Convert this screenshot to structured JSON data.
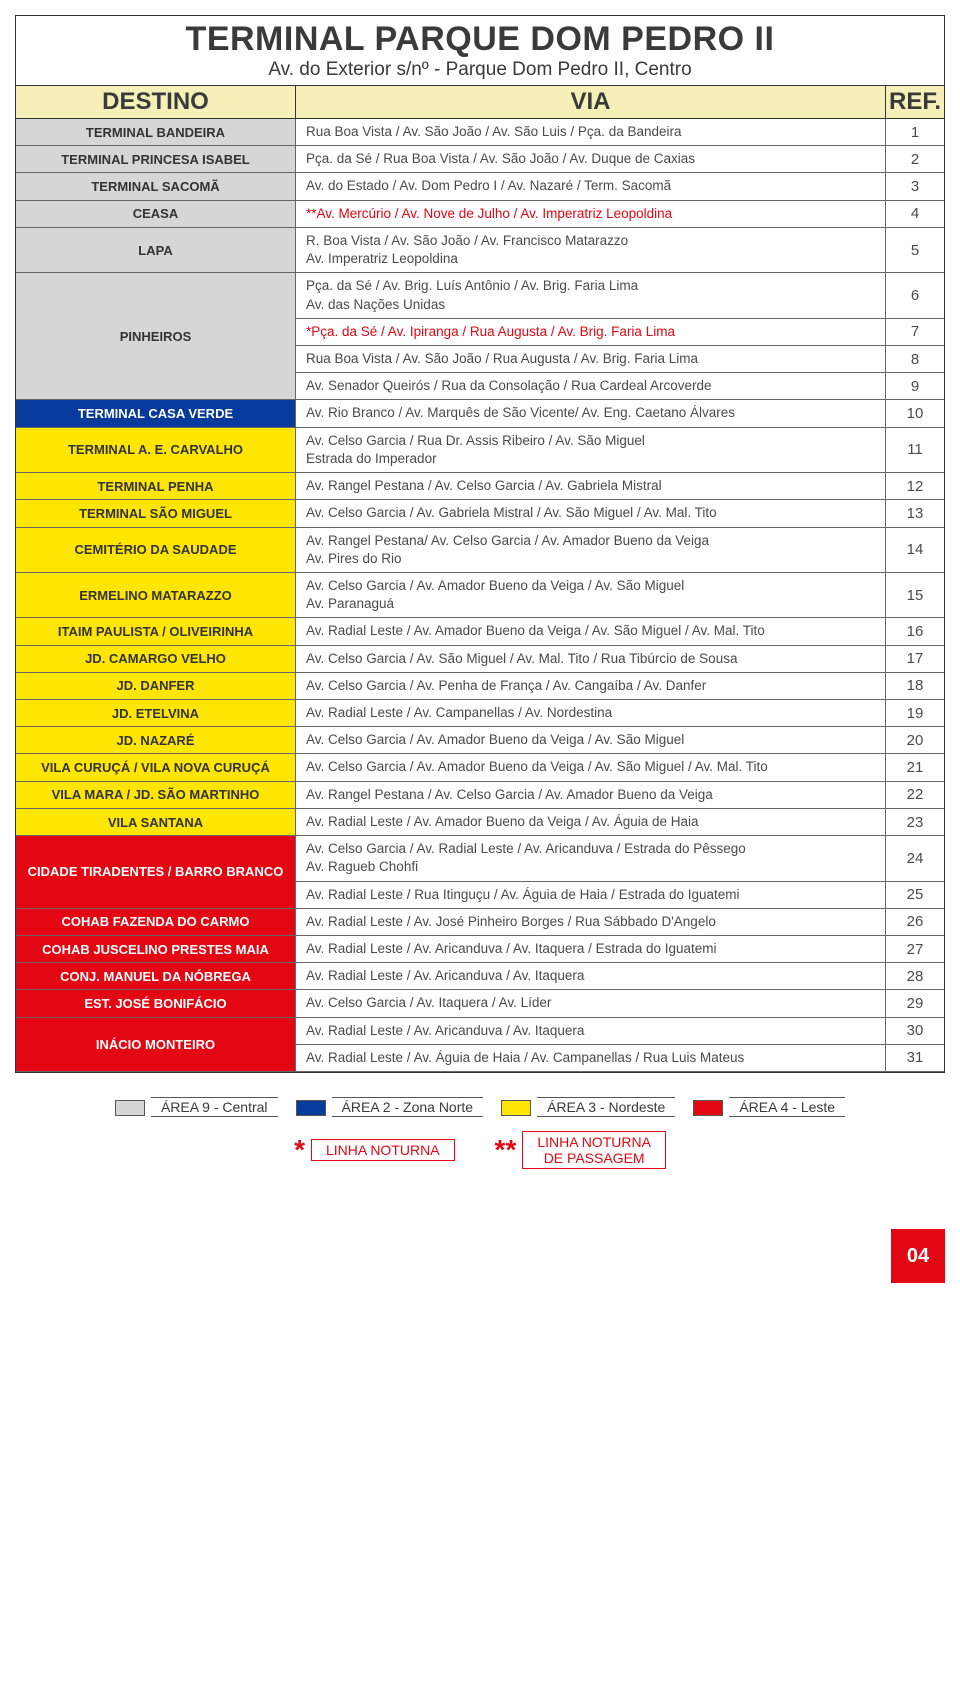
{
  "title": "TERMINAL PARQUE DOM PEDRO II",
  "subtitle": "Av. do Exterior s/nº - Parque Dom Pedro II, Centro",
  "headers": {
    "dest": "DESTINO",
    "via": "VIA",
    "ref": "REF."
  },
  "colors": {
    "gray": "#d6d6d6",
    "blue": "#063a9c",
    "yellow": "#ffe600",
    "red": "#e30613",
    "white": "#ffffff",
    "header_bg": "#f5f0b8",
    "text": "#4a4a4a"
  },
  "rows": [
    {
      "dest": "TERMINAL BANDEIRA",
      "color": "gray",
      "vias": [
        {
          "text": "Rua Boa Vista / Av. São João / Av. São Luis / Pça. da Bandeira",
          "ref": "1"
        }
      ]
    },
    {
      "dest": "TERMINAL PRINCESA ISABEL",
      "color": "gray",
      "vias": [
        {
          "text": "Pça. da Sé / Rua Boa Vista / Av. São João / Av. Duque de Caxias",
          "ref": "2"
        }
      ]
    },
    {
      "dest": "TERMINAL SACOMÃ",
      "color": "gray",
      "vias": [
        {
          "text": "Av. do Estado / Av. Dom Pedro I / Av. Nazaré / Term. Sacomã",
          "ref": "3"
        }
      ]
    },
    {
      "dest": "CEASA",
      "color": "gray",
      "vias": [
        {
          "text": "**Av. Mercúrio / Av. Nove de Julho / Av. Imperatriz Leopoldina",
          "ref": "4",
          "red": true
        }
      ]
    },
    {
      "dest": "LAPA",
      "color": "gray",
      "vias": [
        {
          "text": "R. Boa Vista / Av. São João / Av. Francisco Matarazzo\nAv. Imperatriz Leopoldina",
          "ref": "5"
        }
      ]
    },
    {
      "dest": "PINHEIROS",
      "color": "gray",
      "vias": [
        {
          "text": "Pça. da Sé / Av. Brig. Luís Antônio / Av. Brig. Faria Lima\nAv. das Nações Unidas",
          "ref": "6"
        },
        {
          "text": "*Pça. da Sé / Av. Ipiranga / Rua Augusta  / Av. Brig. Faria Lima",
          "ref": "7",
          "red": true
        },
        {
          "text": "Rua Boa Vista / Av. São João / Rua Augusta / Av. Brig. Faria Lima",
          "ref": "8"
        },
        {
          "text": "Av. Senador Queirós / Rua da Consolação / Rua Cardeal Arcoverde",
          "ref": "9"
        }
      ]
    },
    {
      "dest": "TERMINAL CASA VERDE",
      "color": "blue",
      "vias": [
        {
          "text": "Av. Rio Branco / Av. Marquês de São Vicente/ Av. Eng. Caetano Álvares",
          "ref": "10"
        }
      ]
    },
    {
      "dest": "TERMINAL A. E. CARVALHO",
      "color": "yellow",
      "vias": [
        {
          "text": "Av. Celso Garcia / Rua Dr. Assis Ribeiro / Av. São Miguel\nEstrada do Imperador",
          "ref": "11"
        }
      ]
    },
    {
      "dest": "TERMINAL PENHA",
      "color": "yellow",
      "vias": [
        {
          "text": "Av. Rangel Pestana / Av. Celso Garcia / Av. Gabriela Mistral",
          "ref": "12"
        }
      ]
    },
    {
      "dest": "TERMINAL SÃO MIGUEL",
      "color": "yellow",
      "vias": [
        {
          "text": "Av. Celso Garcia / Av. Gabriela Mistral / Av. São Miguel / Av. Mal. Tito",
          "ref": "13"
        }
      ]
    },
    {
      "dest": "CEMITÉRIO DA SAUDADE",
      "color": "yellow",
      "vias": [
        {
          "text": "Av. Rangel Pestana/ Av. Celso Garcia / Av. Amador Bueno da Veiga\nAv. Pires do Rio",
          "ref": "14"
        }
      ]
    },
    {
      "dest": "ERMELINO MATARAZZO",
      "color": "yellow",
      "vias": [
        {
          "text": "Av. Celso Garcia / Av. Amador Bueno da Veiga / Av. São Miguel\nAv. Paranaguá",
          "ref": "15"
        }
      ]
    },
    {
      "dest": "ITAIM PAULISTA / OLIVEIRINHA",
      "color": "yellow",
      "vias": [
        {
          "text": "Av. Radial Leste / Av. Amador Bueno da Veiga / Av. São Miguel / Av. Mal. Tito",
          "ref": "16"
        }
      ]
    },
    {
      "dest": "JD. CAMARGO VELHO",
      "color": "yellow",
      "vias": [
        {
          "text": "Av. Celso Garcia / Av. São Miguel / Av. Mal. Tito / Rua Tibúrcio de Sousa",
          "ref": "17"
        }
      ]
    },
    {
      "dest": "JD. DANFER",
      "color": "yellow",
      "vias": [
        {
          "text": "Av. Celso Garcia / Av. Penha de França / Av. Cangaíba / Av. Danfer",
          "ref": "18"
        }
      ]
    },
    {
      "dest": "JD. ETELVINA",
      "color": "yellow",
      "vias": [
        {
          "text": "Av. Radial Leste / Av. Campanellas / Av. Nordestina",
          "ref": "19"
        }
      ]
    },
    {
      "dest": "JD. NAZARÉ",
      "color": "yellow",
      "vias": [
        {
          "text": "Av. Celso Garcia / Av. Amador Bueno da Veiga / Av. São Miguel",
          "ref": "20"
        }
      ]
    },
    {
      "dest": "VILA CURUÇÁ / VILA NOVA CURUÇÁ",
      "color": "yellow",
      "vias": [
        {
          "text": "Av. Celso Garcia / Av. Amador Bueno da Veiga / Av. São Miguel / Av. Mal. Tito",
          "ref": "21"
        }
      ]
    },
    {
      "dest": "VILA MARA / JD. SÃO MARTINHO",
      "color": "yellow",
      "vias": [
        {
          "text": "Av. Rangel Pestana / Av. Celso Garcia / Av. Amador Bueno da Veiga",
          "ref": "22"
        }
      ]
    },
    {
      "dest": "VILA SANTANA",
      "color": "yellow",
      "vias": [
        {
          "text": "Av. Radial Leste / Av. Amador Bueno da Veiga / Av. Águia de Haia",
          "ref": "23"
        }
      ]
    },
    {
      "dest": "CIDADE TIRADENTES / BARRO BRANCO",
      "color": "red",
      "vias": [
        {
          "text": "Av. Celso Garcia / Av. Radial Leste / Av. Aricanduva / Estrada do Pêssego\nAv. Ragueb Chohfi",
          "ref": "24"
        },
        {
          "text": "Av. Radial Leste /  Rua Itinguçu / Av. Águia de Haia / Estrada do Iguatemi",
          "ref": "25"
        }
      ]
    },
    {
      "dest": "COHAB FAZENDA DO CARMO",
      "color": "red",
      "vias": [
        {
          "text": "Av. Radial Leste / Av. José Pinheiro Borges / Rua Sábbado D'Angelo",
          "ref": "26"
        }
      ]
    },
    {
      "dest": "COHAB JUSCELINO PRESTES MAIA",
      "color": "red",
      "vias": [
        {
          "text": "Av. Radial Leste / Av. Aricanduva / Av. Itaquera / Estrada do Iguatemi",
          "ref": "27"
        }
      ]
    },
    {
      "dest": "CONJ. MANUEL DA NÓBREGA",
      "color": "red",
      "vias": [
        {
          "text": "Av. Radial Leste / Av. Aricanduva / Av. Itaquera",
          "ref": "28"
        }
      ]
    },
    {
      "dest": "EST. JOSÉ BONIFÁCIO",
      "color": "red",
      "vias": [
        {
          "text": "Av. Celso Garcia / Av. Itaquera / Av. Líder",
          "ref": "29"
        }
      ]
    },
    {
      "dest": "INÁCIO MONTEIRO",
      "color": "red",
      "vias": [
        {
          "text": "Av. Radial Leste / Av. Aricanduva / Av. Itaquera",
          "ref": "30"
        },
        {
          "text": "Av. Radial Leste / Av. Águia de Haia / Av. Campanellas / Rua Luis Mateus",
          "ref": "31"
        }
      ]
    }
  ],
  "legend_areas": [
    {
      "color": "gray",
      "label": "ÁREA 9 - Central"
    },
    {
      "color": "blue",
      "label": "ÁREA 2 - Zona Norte"
    },
    {
      "color": "yellow",
      "label": "ÁREA 3 - Nordeste"
    },
    {
      "color": "red",
      "label": "ÁREA 4 - Leste"
    }
  ],
  "legend_notes": [
    {
      "mark": "*",
      "label": "LINHA NOTURNA"
    },
    {
      "mark": "**",
      "label": "LINHA NOTURNA\nDE PASSAGEM"
    }
  ],
  "page_number": "04"
}
